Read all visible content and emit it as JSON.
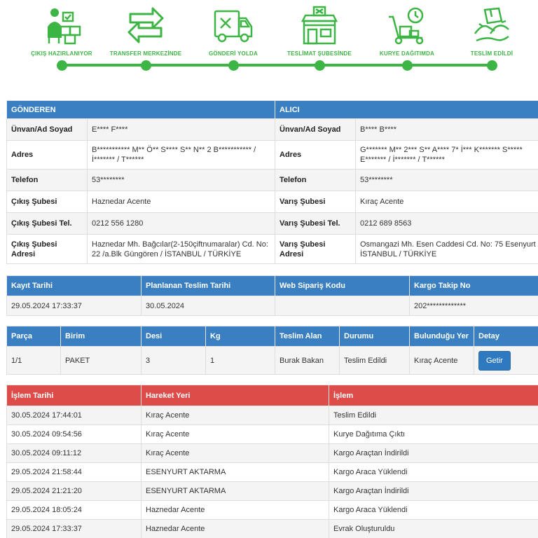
{
  "steps": [
    {
      "label": "ÇIKIŞ HAZIRLANIYOR",
      "icon": "courier-boxes-icon"
    },
    {
      "label": "TRANSFER MERKEZİNDE",
      "icon": "transfer-arrows-icon"
    },
    {
      "label": "GÖNDERİ YOLDA",
      "icon": "delivery-truck-icon"
    },
    {
      "label": "TESLİMAT ŞUBESİNDE",
      "icon": "branch-store-icon"
    },
    {
      "label": "KURYE DAĞITIMDA",
      "icon": "hand-truck-clock-icon"
    },
    {
      "label": "TESLİM EDİLDİ",
      "icon": "delivered-package-icon"
    }
  ],
  "accent_color": "#3db545",
  "header_blue": "#3a7fc2",
  "header_red": "#de4c4a",
  "parties": {
    "sender_header": "GÖNDEREN",
    "receiver_header": "ALICI",
    "rows": [
      {
        "s_label": "Ünvan/Ad Soyad",
        "s_value": "E**** F****",
        "r_label": "Ünvan/Ad Soyad",
        "r_value": "B**** B****"
      },
      {
        "s_label": "Adres",
        "s_value": "B*********** M** Ö** S**** S** N** 2 B*********** / İ******* / T******",
        "r_label": "Adres",
        "r_value": "G******* M** 2*** S** A**** 7* İ*** K******* S***** E******* / İ******* / T******"
      },
      {
        "s_label": "Telefon",
        "s_value": "53********",
        "r_label": "Telefon",
        "r_value": "53********"
      },
      {
        "s_label": "Çıkış Şubesi",
        "s_value": "Haznedar Acente",
        "r_label": "Varış Şubesi",
        "r_value": "Kıraç Acente"
      },
      {
        "s_label": "Çıkış Şubesi Tel.",
        "s_value": "0212 556 1280",
        "r_label": "Varış Şubesi Tel.",
        "r_value": "0212 689 8563"
      },
      {
        "s_label": "Çıkış Şubesi Adresi",
        "s_value": "Haznedar Mh. Bağcılar(2-150çiftnumaralar) Cd. No: 22 /a.Blk Güngören / İSTANBUL / TÜRKİYE",
        "r_label": "Varış Şubesi Adresi",
        "r_value": "Osmangazi Mh. Esen Caddesi Cd. No: 75 Esenyurt / İSTANBUL / TÜRKİYE"
      }
    ]
  },
  "shipment": {
    "headers": [
      "Kayıt Tarihi",
      "Planlanan Teslim Tarihi",
      "Web Sipariş Kodu",
      "Kargo Takip No"
    ],
    "values": [
      "29.05.2024 17:33:37",
      "30.05.2024",
      "",
      "202*************"
    ]
  },
  "parcels": {
    "headers": [
      "Parça",
      "Birim",
      "Desi",
      "Kg",
      "Teslim Alan",
      "Durumu",
      "Bulunduğu Yer",
      "Detay"
    ],
    "row": {
      "parca": "1/1",
      "birim": "PAKET",
      "desi": "3",
      "kg": "1",
      "teslim_alan": "Burak Bakan",
      "durumu": "Teslim Edildi",
      "yer": "Kıraç Acente",
      "detay_button": "Getir"
    }
  },
  "history": {
    "headers": [
      "İşlem Tarihi",
      "Hareket Yeri",
      "İşlem"
    ],
    "rows": [
      {
        "date": "30.05.2024 17:44:01",
        "place": "Kıraç Acente",
        "action": "Teslim Edildi"
      },
      {
        "date": "30.05.2024 09:54:56",
        "place": "Kıraç Acente",
        "action": "Kurye Dağıtıma Çıktı"
      },
      {
        "date": "30.05.2024 09:11:12",
        "place": "Kıraç Acente",
        "action": "Kargo Araçtan İndirildi"
      },
      {
        "date": "29.05.2024 21:58:44",
        "place": "ESENYURT AKTARMA",
        "action": "Kargo Araca Yüklendi"
      },
      {
        "date": "29.05.2024 21:21:20",
        "place": "ESENYURT AKTARMA",
        "action": "Kargo Araçtan İndirildi"
      },
      {
        "date": "29.05.2024 18:05:24",
        "place": "Haznedar Acente",
        "action": "Kargo Araca Yüklendi"
      },
      {
        "date": "29.05.2024 17:33:37",
        "place": "Haznedar Acente",
        "action": "Evrak Oluşturuldu"
      }
    ]
  }
}
